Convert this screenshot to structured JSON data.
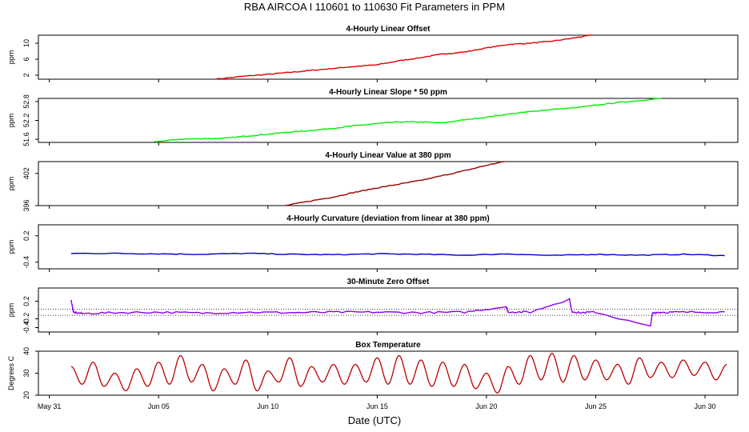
{
  "title": "RBA   AIRCOA I   110601 to 110630   Fit Parameters in PPM",
  "xlabel": "Date (UTC)",
  "x_ticks": [
    "May 31",
    "Jun 05",
    "Jun 10",
    "Jun 15",
    "Jun 20",
    "Jun 25",
    "Jun 30"
  ],
  "chart_data": [
    {
      "type": "line",
      "title": "4-Hourly Linear Offset",
      "ylabel": "ppm",
      "yticks": [
        "2",
        "6",
        "10"
      ],
      "ylim": [
        1,
        12
      ],
      "xlim": [
        -0.5,
        31.5
      ],
      "color": "#dd0000",
      "series": [
        {
          "x": [
            7.6,
            9,
            10,
            11,
            12,
            13,
            14,
            15,
            16,
            17,
            18,
            19,
            20,
            21,
            22,
            23,
            24,
            24.8
          ],
          "y": [
            1.0,
            1.8,
            2.2,
            2.7,
            3.2,
            3.7,
            4.2,
            4.6,
            5.6,
            6.4,
            7.3,
            7.8,
            8.8,
            9.7,
            10.0,
            10.5,
            11.3,
            12.0
          ]
        }
      ]
    },
    {
      "type": "line",
      "title": "4-Hourly Linear Slope * 50 ppm",
      "ylabel": "ppm",
      "yticks": [
        "51.6",
        "52.2",
        "52.8"
      ],
      "ylim": [
        51.5,
        52.9
      ],
      "xlim": [
        -0.5,
        31.5
      ],
      "color": "#00ee00",
      "series": [
        {
          "x": [
            4.8,
            6,
            7,
            8,
            9,
            10,
            11,
            12,
            13,
            14,
            15,
            16,
            17,
            18,
            19,
            20,
            21,
            22,
            23,
            24,
            25,
            26,
            27,
            28
          ],
          "y": [
            51.52,
            51.6,
            51.62,
            51.63,
            51.7,
            51.76,
            51.83,
            51.88,
            51.95,
            52.03,
            52.1,
            52.15,
            52.15,
            52.12,
            52.22,
            52.3,
            52.4,
            52.48,
            52.55,
            52.6,
            52.68,
            52.77,
            52.83,
            52.9
          ]
        }
      ]
    },
    {
      "type": "line",
      "title": "4-Hourly Linear Value at 380 ppm",
      "ylabel": "ppm",
      "yticks": [
        "396",
        "402"
      ],
      "ylim": [
        396,
        404.2
      ],
      "xlim": [
        -0.5,
        31.5
      ],
      "color": "#990000",
      "series": [
        {
          "x": [
            10.8,
            12,
            13,
            14,
            15,
            16,
            17,
            18,
            19,
            20,
            20.8
          ],
          "y": [
            396.0,
            396.9,
            397.6,
            398.5,
            399.3,
            400.0,
            400.7,
            401.6,
            402.5,
            403.5,
            404.2
          ]
        }
      ]
    },
    {
      "type": "line",
      "title": "4-Hourly Curvature (deviation from linear at 380 ppm)",
      "ylabel": "ppm",
      "yticks": [
        "-0.4",
        "0.2"
      ],
      "ylim": [
        -0.55,
        0.45
      ],
      "xlim": [
        -0.5,
        31.5
      ],
      "color": "#0000cc",
      "series": [
        {
          "x": [
            1,
            3,
            5,
            7,
            9,
            11,
            13,
            15,
            17,
            19,
            21,
            23,
            25,
            27,
            29,
            30.9
          ],
          "y": [
            -0.2,
            -0.2,
            -0.21,
            -0.22,
            -0.2,
            -0.22,
            -0.23,
            -0.21,
            -0.22,
            -0.24,
            -0.21,
            -0.25,
            -0.22,
            -0.24,
            -0.22,
            -0.25
          ]
        }
      ]
    },
    {
      "type": "line",
      "title": "30-Minute Zero Offset",
      "ylabel": "ppm",
      "yticks": [
        "-0.4",
        "-0.2",
        "0.2"
      ],
      "ylim": [
        -0.5,
        0.5
      ],
      "xlim": [
        -0.5,
        31.5
      ],
      "color": "#8800ee",
      "hlines": [
        -0.12,
        0.02
      ],
      "series": [
        {
          "x": [
            1,
            1.1,
            1.5,
            3,
            5,
            7,
            9,
            11,
            13,
            15,
            17,
            19,
            20.9,
            21,
            22,
            23.8,
            23.9,
            24.2,
            25,
            27.5,
            27.6,
            28,
            29,
            30.9
          ],
          "y": [
            0.22,
            -0.05,
            -0.08,
            -0.06,
            -0.05,
            -0.07,
            -0.05,
            -0.06,
            -0.05,
            -0.05,
            -0.06,
            -0.05,
            0.08,
            -0.04,
            -0.05,
            0.25,
            -0.03,
            -0.06,
            -0.05,
            -0.38,
            -0.06,
            -0.05,
            -0.05,
            -0.04
          ]
        }
      ]
    },
    {
      "type": "line",
      "title": "Box Temperature",
      "ylabel": "Degrees C",
      "yticks": [
        "20",
        "30",
        "40"
      ],
      "ylim": [
        20,
        40
      ],
      "xlim": [
        -0.5,
        31.5
      ],
      "color": "#bb0000",
      "series": [
        {
          "x": [
            1,
            1.5,
            2,
            2.5,
            3,
            3.5,
            4,
            4.5,
            5,
            5.5,
            6,
            6.5,
            7,
            7.5,
            8,
            8.5,
            9,
            9.5,
            10,
            10.5,
            11,
            11.5,
            12,
            12.5,
            13,
            13.5,
            14,
            14.5,
            15,
            15.5,
            16,
            16.5,
            17,
            17.5,
            18,
            18.5,
            19,
            19.5,
            20,
            20.5,
            21,
            21.5,
            22,
            22.5,
            23,
            23.5,
            24,
            24.5,
            25,
            25.5,
            26,
            26.5,
            27,
            27.5,
            28,
            28.5,
            29,
            29.5,
            30,
            30.5,
            31
          ],
          "y": [
            33,
            25,
            35,
            24,
            30,
            22,
            32,
            24,
            35,
            25,
            38,
            26,
            34,
            22,
            32,
            25,
            36,
            22,
            31,
            26,
            37,
            24,
            33,
            26,
            34,
            25,
            34,
            26,
            37,
            25,
            38,
            25,
            36,
            24,
            35,
            24,
            34,
            23,
            30,
            21,
            33,
            25,
            38,
            27,
            39,
            26,
            38,
            27,
            36,
            27,
            34,
            25,
            37,
            28,
            35,
            28,
            36,
            29,
            35,
            27,
            34
          ]
        }
      ]
    }
  ]
}
